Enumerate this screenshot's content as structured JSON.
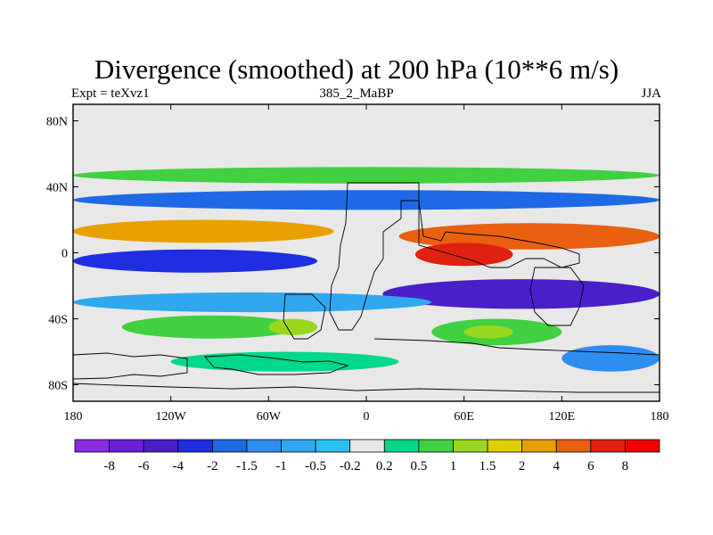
{
  "chart_data": {
    "type": "filled-contour-map",
    "title": "Divergence (smoothed) at 200 hPa (10**6 m/s)",
    "left_label": "Expt = teXvz1",
    "center_label": "385_2_MaBP",
    "right_label": "JJA",
    "x_ticks": [
      "180",
      "120W",
      "60W",
      "0",
      "60E",
      "120E",
      "180"
    ],
    "x_tick_lon": [
      -180,
      -120,
      -60,
      0,
      60,
      120,
      180
    ],
    "y_ticks": [
      "80N",
      "40N",
      "0",
      "40S",
      "80S"
    ],
    "y_tick_lat": [
      80,
      40,
      0,
      -40,
      -80
    ],
    "xlim": [
      -180,
      180
    ],
    "ylim": [
      -90,
      90
    ],
    "colorbar": {
      "labels": [
        "-8",
        "-6",
        "-4",
        "-2",
        "-1.5",
        "-1",
        "-0.5",
        "-0.2",
        "0.2",
        "0.5",
        "1",
        "1.5",
        "2",
        "4",
        "6",
        "8"
      ],
      "colors": [
        "#8a2be2",
        "#6a1ed6",
        "#4a1ec8",
        "#1e2ee0",
        "#1e6ae6",
        "#2e8ef0",
        "#30a8f0",
        "#28c0f0",
        "#e8e8e8",
        "#00d88a",
        "#40d040",
        "#9ad820",
        "#e0d000",
        "#e8a000",
        "#e86010",
        "#e02010",
        "#f00000"
      ]
    },
    "land_color": "#e8e8e8",
    "bands": [
      {
        "lon": [
          -180,
          180
        ],
        "lat": [
          42,
          52
        ],
        "value": 1,
        "color": "#40d040"
      },
      {
        "lon": [
          -180,
          180
        ],
        "lat": [
          26,
          38
        ],
        "value": -1.5,
        "color": "#1e6ae6"
      },
      {
        "lon": [
          -180,
          -20
        ],
        "lat": [
          6,
          20
        ],
        "value": 2,
        "color": "#e8a000"
      },
      {
        "lon": [
          20,
          180
        ],
        "lat": [
          2,
          18
        ],
        "value": 4,
        "color": "#e86010"
      },
      {
        "lon": [
          30,
          90
        ],
        "lat": [
          -8,
          6
        ],
        "value": 6,
        "color": "#e02010"
      },
      {
        "lon": [
          -180,
          -30
        ],
        "lat": [
          -12,
          2
        ],
        "value": -2,
        "color": "#1e2ee0"
      },
      {
        "lon": [
          10,
          180
        ],
        "lat": [
          -34,
          -16
        ],
        "value": -4,
        "color": "#4a1ec8"
      },
      {
        "lon": [
          -180,
          40
        ],
        "lat": [
          -36,
          -24
        ],
        "value": -0.5,
        "color": "#30a8f0"
      },
      {
        "lon": [
          -150,
          -40
        ],
        "lat": [
          -52,
          -38
        ],
        "value": 1,
        "color": "#40d040"
      },
      {
        "lon": [
          40,
          120
        ],
        "lat": [
          -56,
          -40
        ],
        "value": 1,
        "color": "#40d040"
      },
      {
        "lon": [
          -60,
          -30
        ],
        "lat": [
          -50,
          -40
        ],
        "value": 1.5,
        "color": "#9ad820"
      },
      {
        "lon": [
          60,
          90
        ],
        "lat": [
          -52,
          -44
        ],
        "value": 1.5,
        "color": "#9ad820"
      },
      {
        "lon": [
          120,
          180
        ],
        "lat": [
          -72,
          -56
        ],
        "value": -1,
        "color": "#2e8ef0"
      },
      {
        "lon": [
          -120,
          20
        ],
        "lat": [
          -72,
          -60
        ],
        "value": 0.5,
        "color": "#00d88a"
      }
    ]
  }
}
